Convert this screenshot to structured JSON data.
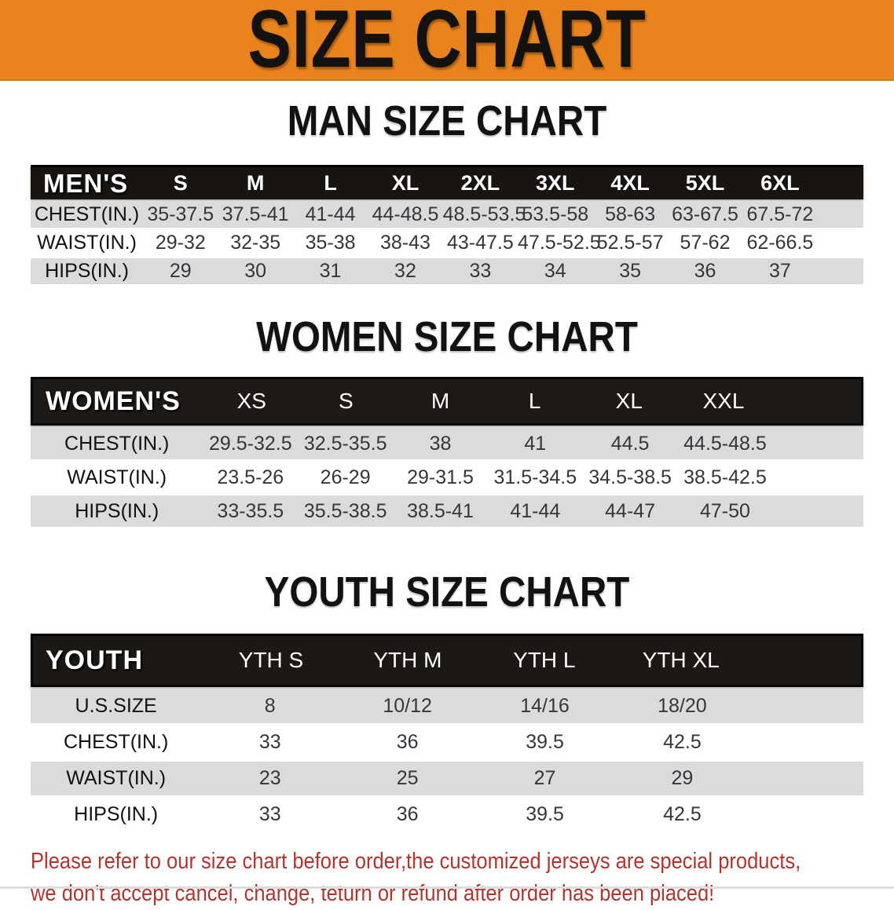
{
  "banner": {
    "title": "SIZE CHART"
  },
  "sections": {
    "men": {
      "heading": "MAN SIZE CHART",
      "table": {
        "header_label": "MEN'S",
        "columns": [
          "S",
          "M",
          "L",
          "XL",
          "2XL",
          "3XL",
          "4XL",
          "5XL",
          "6XL"
        ],
        "rows": [
          {
            "label": "CHEST(IN.)",
            "values": [
              "35-37.5",
              "37.5-41",
              "41-44",
              "44-48.5",
              "48.5-53.5",
              "53.5-58",
              "58-63",
              "63-67.5",
              "67.5-72"
            ]
          },
          {
            "label": "WAIST(IN.)",
            "values": [
              "29-32",
              "32-35",
              "35-38",
              "38-43",
              "43-47.5",
              "47.5-52.5",
              "52.5-57",
              "57-62",
              "62-66.5"
            ]
          },
          {
            "label": "HIPS(IN.)",
            "values": [
              "29",
              "30",
              "31",
              "32",
              "33",
              "34",
              "35",
              "36",
              "37"
            ]
          }
        ]
      }
    },
    "women": {
      "heading": "WOMEN SIZE CHART",
      "table": {
        "header_label": "WOMEN'S",
        "columns": [
          "XS",
          "S",
          "M",
          "L",
          "XL",
          "XXL"
        ],
        "rows": [
          {
            "label": "CHEST(IN.)",
            "values": [
              "29.5-32.5",
              "32.5-35.5",
              "38",
              "41",
              "44.5",
              "44.5-48.5"
            ]
          },
          {
            "label": "WAIST(IN.)",
            "values": [
              "23.5-26",
              "26-29",
              "29-31.5",
              "31.5-34.5",
              "34.5-38.5",
              "38.5-42.5"
            ]
          },
          {
            "label": "HIPS(IN.)",
            "values": [
              "33-35.5",
              "35.5-38.5",
              "38.5-41",
              "41-44",
              "44-47",
              "47-50"
            ]
          }
        ]
      }
    },
    "youth": {
      "heading": "YOUTH SIZE CHART",
      "table": {
        "header_label": "YOUTH",
        "columns": [
          "YTH S",
          "YTH M",
          "YTH L",
          "YTH XL"
        ],
        "rows": [
          {
            "label": "U.S.SIZE",
            "values": [
              "8",
              "10/12",
              "14/16",
              "18/20"
            ]
          },
          {
            "label": "CHEST(IN.)",
            "values": [
              "33",
              "36",
              "39.5",
              "42.5"
            ]
          },
          {
            "label": "WAIST(IN.)",
            "values": [
              "23",
              "25",
              "27",
              "29"
            ]
          },
          {
            "label": "HIPS(IN.)",
            "values": [
              "33",
              "36",
              "39.5",
              "42.5"
            ]
          }
        ]
      }
    }
  },
  "footer": {
    "line1": "Please refer to our size chart before order,the customized jerseys are special products,",
    "line2": "we don't accept cancel, change, teturn or refund after order has been placed!"
  },
  "colors": {
    "banner_orange": "#E8831E",
    "header_black": "#171411",
    "row_gray": "#DBDBDB",
    "row_white": "#FFFFFF",
    "footer_red": "#B1342D"
  }
}
